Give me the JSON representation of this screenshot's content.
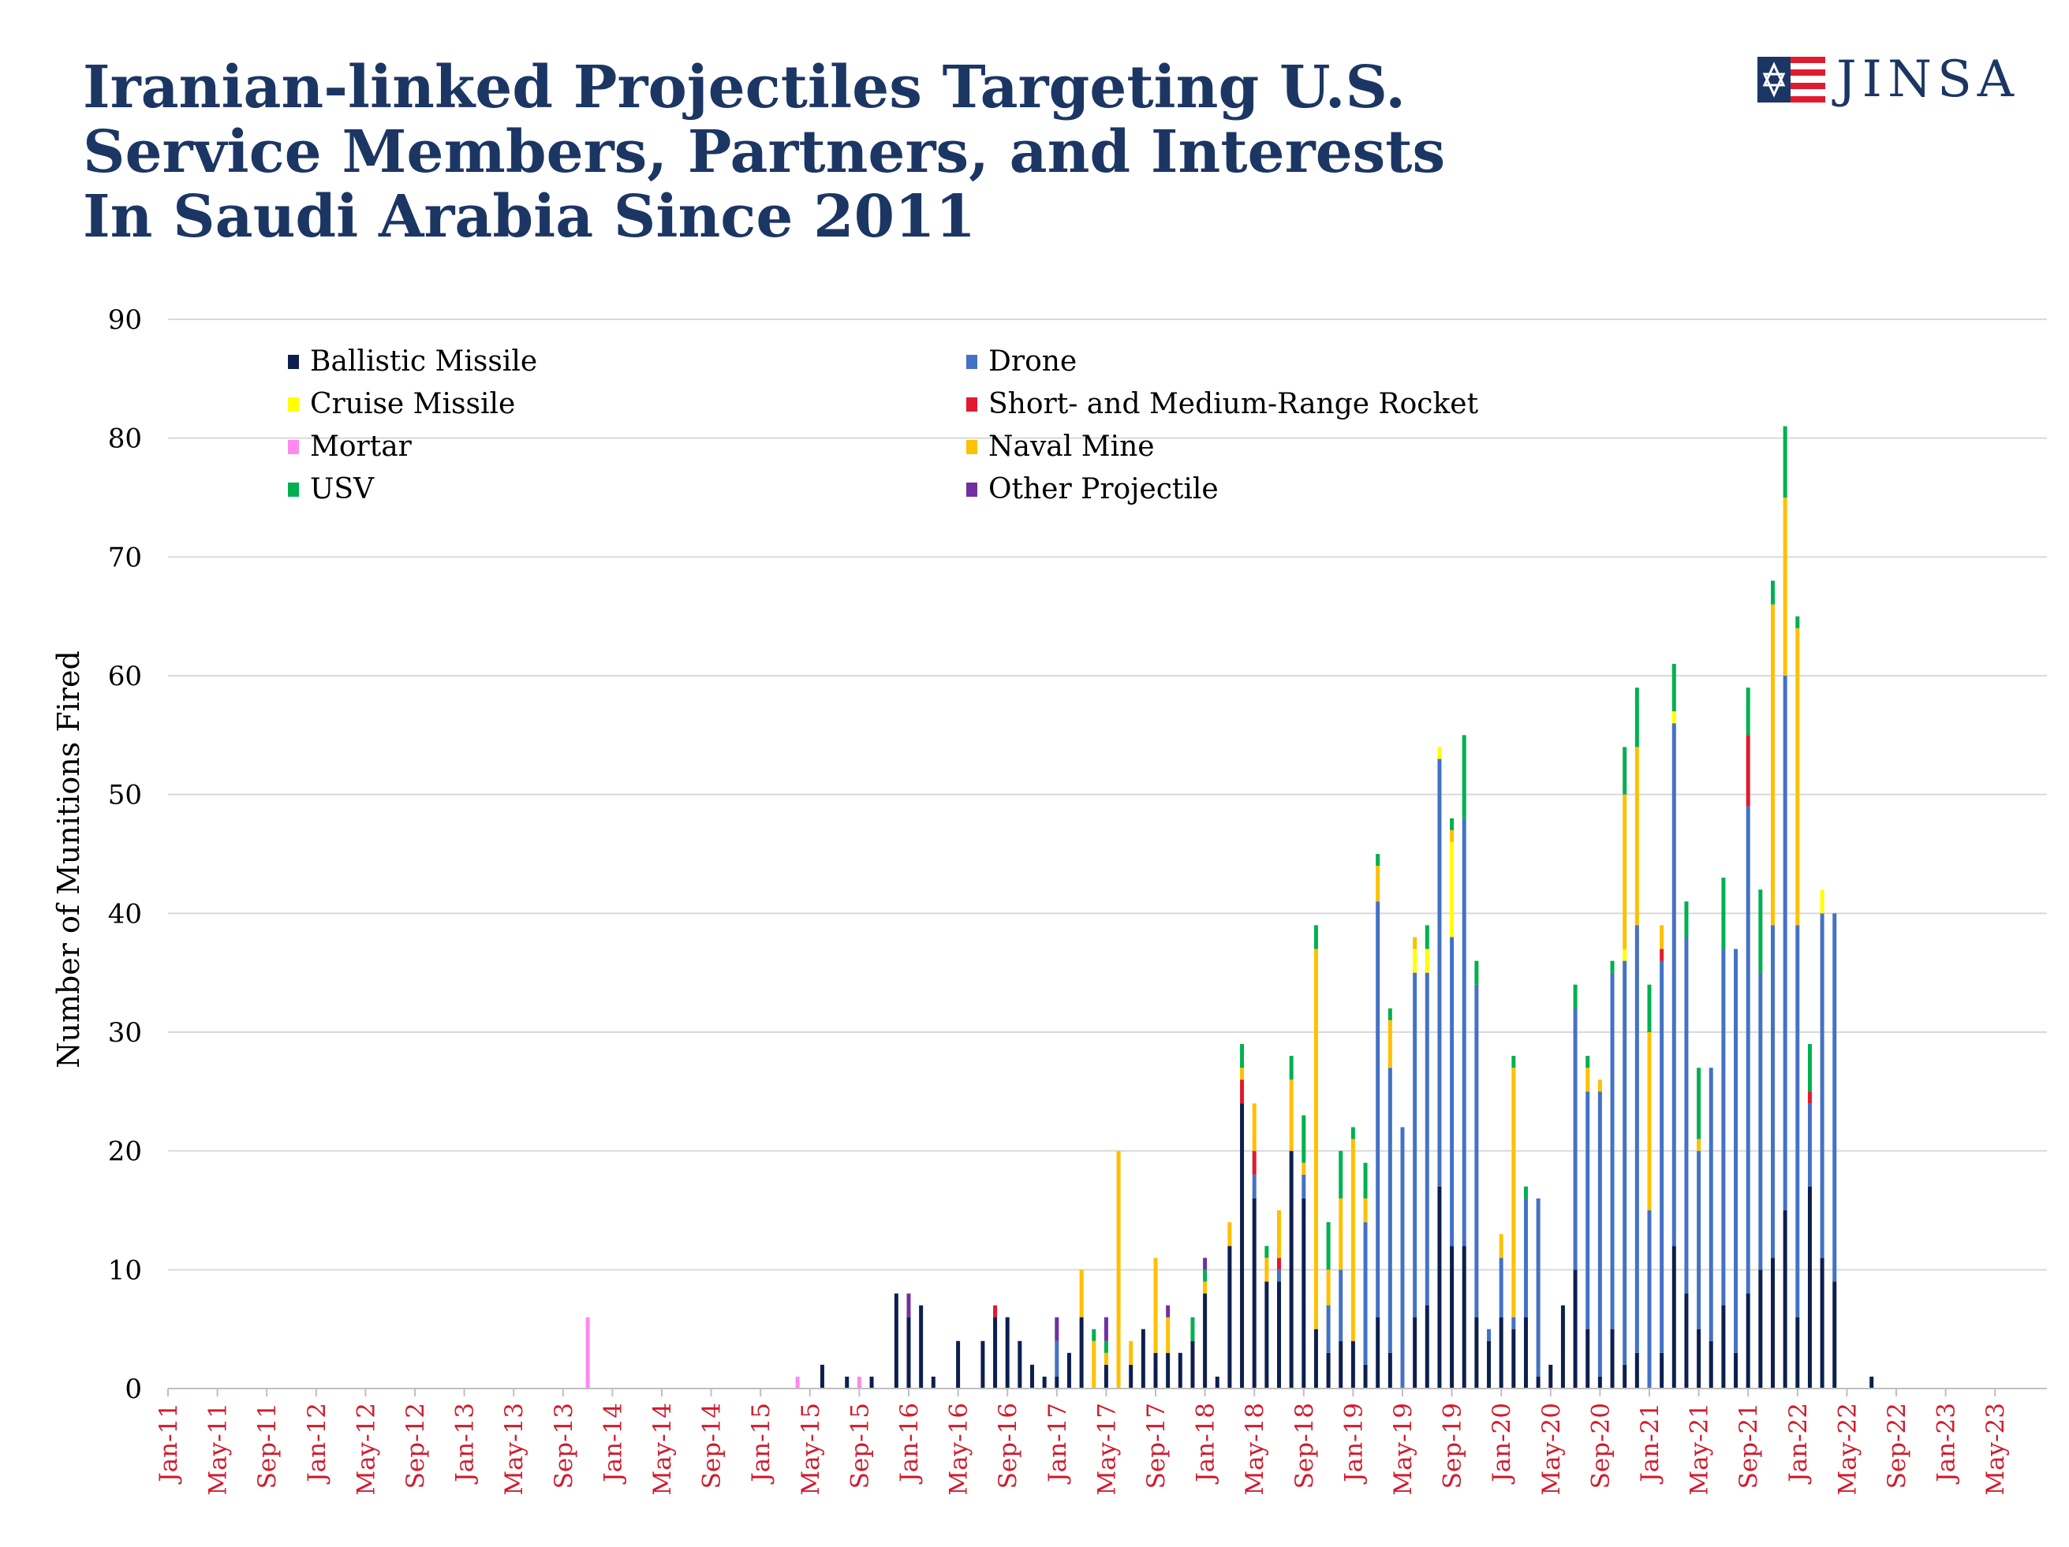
{
  "title_lines": [
    "Iranian-linked Projectiles Targeting U.S.",
    "Service Members, Partners, and Interests",
    "In Saudi Arabia Since 2011"
  ],
  "logo": {
    "text": "JINSA",
    "icon": "jinsa-flag-star-logo-icon"
  },
  "colors": {
    "title": "#1c3664",
    "Ballistic Missile": "#0d1f4f",
    "Drone": "#4472c4",
    "Cruise Missile": "#ffff00",
    "Short- and Medium-Range Rocket": "#e01b2f",
    "Mortar": "#ff88ee",
    "Naval Mine": "#ffc000",
    "USV": "#00b050",
    "Other Projectile": "#7030a0",
    "x_tick_label": "#d01c2e",
    "grid": "#d9d9d9"
  },
  "chart_data": {
    "type": "bar",
    "stacked": true,
    "ylabel": "Number of Munitions Fired",
    "xlabel": "",
    "ylim": [
      0,
      90
    ],
    "y_ticks": [
      0,
      10,
      20,
      30,
      40,
      50,
      60,
      70,
      80,
      90
    ],
    "grid": "horizontal",
    "legend_position": "top-left, two columns",
    "x_tick_labels": [
      "Jan-11",
      "May-11",
      "Sep-11",
      "Jan-12",
      "May-12",
      "Sep-12",
      "Jan-13",
      "May-13",
      "Sep-13",
      "Jan-14",
      "May-14",
      "Sep-14",
      "Jan-15",
      "May-15",
      "Sep-15",
      "Jan-16",
      "May-16",
      "Sep-16",
      "Jan-17",
      "May-17",
      "Sep-17",
      "Jan-18",
      "May-18",
      "Sep-18",
      "Jan-19",
      "May-19",
      "Sep-19",
      "Jan-20",
      "May-20",
      "Sep-20",
      "Jan-21",
      "May-21",
      "Sep-21",
      "Jan-22",
      "May-22",
      "Sep-22",
      "Jan-23",
      "May-23"
    ],
    "series_order": [
      "Ballistic Missile",
      "Drone",
      "Cruise Missile",
      "Short- and Medium-Range Rocket",
      "Mortar",
      "Naval Mine",
      "USV",
      "Other Projectile"
    ],
    "legend": [
      "Ballistic Missile",
      "Drone",
      "Cruise Missile",
      "Short- and Medium-Range Rocket",
      "Mortar",
      "Naval Mine",
      "USV",
      "Other Projectile"
    ],
    "bars": [
      {
        "month": "Nov-13",
        "Mortar": 6
      },
      {
        "month": "Apr-15",
        "Mortar": 1
      },
      {
        "month": "Jun-15",
        "Ballistic Missile": 2
      },
      {
        "month": "Aug-15",
        "Ballistic Missile": 1
      },
      {
        "month": "Sep-15",
        "Mortar": 1
      },
      {
        "month": "Oct-15",
        "Ballistic Missile": 1
      },
      {
        "month": "Dec-15",
        "Ballistic Missile": 8
      },
      {
        "month": "Jan-16",
        "Ballistic Missile": 6,
        "Other Projectile": 2
      },
      {
        "month": "Feb-16",
        "Ballistic Missile": 7
      },
      {
        "month": "Mar-16",
        "Ballistic Missile": 1
      },
      {
        "month": "May-16",
        "Ballistic Missile": 4
      },
      {
        "month": "Jul-16",
        "Ballistic Missile": 4
      },
      {
        "month": "Aug-16",
        "Ballistic Missile": 6,
        "Short- and Medium-Range Rocket": 1
      },
      {
        "month": "Sep-16",
        "Ballistic Missile": 6
      },
      {
        "month": "Oct-16",
        "Ballistic Missile": 4
      },
      {
        "month": "Nov-16",
        "Ballistic Missile": 2
      },
      {
        "month": "Dec-16",
        "Ballistic Missile": 1
      },
      {
        "month": "Jan-17",
        "Ballistic Missile": 1,
        "Drone": 3,
        "Other Projectile": 2
      },
      {
        "month": "Feb-17",
        "Ballistic Missile": 3
      },
      {
        "month": "Mar-17",
        "Ballistic Missile": 6,
        "Naval Mine": 4
      },
      {
        "month": "Apr-17",
        "Naval Mine": 4,
        "USV": 1
      },
      {
        "month": "May-17",
        "Ballistic Missile": 2,
        "Naval Mine": 1,
        "USV": 1,
        "Other Projectile": 2
      },
      {
        "month": "Jun-17",
        "Naval Mine": 20
      },
      {
        "month": "Jul-17",
        "Ballistic Missile": 2,
        "Naval Mine": 2
      },
      {
        "month": "Aug-17",
        "Ballistic Missile": 5
      },
      {
        "month": "Sep-17",
        "Ballistic Missile": 3,
        "Naval Mine": 8
      },
      {
        "month": "Oct-17",
        "Ballistic Missile": 3,
        "Naval Mine": 3,
        "Other Projectile": 1
      },
      {
        "month": "Nov-17",
        "Ballistic Missile": 3
      },
      {
        "month": "Dec-17",
        "Ballistic Missile": 4,
        "USV": 2
      },
      {
        "month": "Jan-18",
        "Ballistic Missile": 8,
        "Naval Mine": 1,
        "USV": 1,
        "Other Projectile": 1
      },
      {
        "month": "Feb-18",
        "Ballistic Missile": 1
      },
      {
        "month": "Mar-18",
        "Ballistic Missile": 12,
        "Naval Mine": 2
      },
      {
        "month": "Apr-18",
        "Ballistic Missile": 24,
        "Short- and Medium-Range Rocket": 2,
        "Naval Mine": 1,
        "USV": 2
      },
      {
        "month": "May-18",
        "Ballistic Missile": 16,
        "Drone": 2,
        "Short- and Medium-Range Rocket": 2,
        "Naval Mine": 4
      },
      {
        "month": "Jun-18",
        "Ballistic Missile": 9,
        "Naval Mine": 2,
        "USV": 1
      },
      {
        "month": "Jul-18",
        "Ballistic Missile": 9,
        "Drone": 1,
        "Short- and Medium-Range Rocket": 1,
        "Naval Mine": 4
      },
      {
        "month": "Aug-18",
        "Ballistic Missile": 20,
        "Naval Mine": 6,
        "USV": 2
      },
      {
        "month": "Sep-18",
        "Ballistic Missile": 16,
        "Drone": 2,
        "Naval Mine": 1,
        "USV": 4
      },
      {
        "month": "Oct-18",
        "Ballistic Missile": 5,
        "Naval Mine": 32,
        "USV": 2
      },
      {
        "month": "Nov-18",
        "Ballistic Missile": 3,
        "Drone": 4,
        "Naval Mine": 3,
        "USV": 4
      },
      {
        "month": "Dec-18",
        "Ballistic Missile": 4,
        "Drone": 6,
        "Naval Mine": 6,
        "USV": 4
      },
      {
        "month": "Jan-19",
        "Ballistic Missile": 4,
        "Naval Mine": 17,
        "USV": 1
      },
      {
        "month": "Feb-19",
        "Ballistic Missile": 2,
        "Drone": 12,
        "Naval Mine": 2,
        "USV": 3
      },
      {
        "month": "Mar-19",
        "Ballistic Missile": 6,
        "Drone": 35,
        "Naval Mine": 3,
        "USV": 1
      },
      {
        "month": "Apr-19",
        "Ballistic Missile": 3,
        "Drone": 24,
        "Naval Mine": 4,
        "USV": 1
      },
      {
        "month": "May-19",
        "Drone": 22
      },
      {
        "month": "Jun-19",
        "Ballistic Missile": 6,
        "Drone": 29,
        "Cruise Missile": 2,
        "Naval Mine": 1
      },
      {
        "month": "Jul-19",
        "Ballistic Missile": 7,
        "Drone": 28,
        "Cruise Missile": 2,
        "USV": 2
      },
      {
        "month": "Aug-19",
        "Ballistic Missile": 17,
        "Drone": 36,
        "Cruise Missile": 1
      },
      {
        "month": "Sep-19",
        "Ballistic Missile": 12,
        "Drone": 26,
        "Cruise Missile": 8,
        "Naval Mine": 1,
        "USV": 1
      },
      {
        "month": "Oct-19",
        "Ballistic Missile": 12,
        "Drone": 36,
        "USV": 7
      },
      {
        "month": "Nov-19",
        "Ballistic Missile": 6,
        "Drone": 28,
        "USV": 2
      },
      {
        "month": "Dec-19",
        "Ballistic Missile": 4,
        "Drone": 1
      },
      {
        "month": "Jan-20",
        "Ballistic Missile": 6,
        "Drone": 5,
        "Naval Mine": 2
      },
      {
        "month": "Feb-20",
        "Ballistic Missile": 5,
        "Drone": 1,
        "Naval Mine": 21,
        "USV": 1
      },
      {
        "month": "Mar-20",
        "Ballistic Missile": 6,
        "Drone": 10,
        "USV": 1
      },
      {
        "month": "Apr-20",
        "Ballistic Missile": 1,
        "Drone": 15
      },
      {
        "month": "May-20",
        "Ballistic Missile": 2
      },
      {
        "month": "Jun-20",
        "Ballistic Missile": 7
      },
      {
        "month": "Jul-20",
        "Ballistic Missile": 10,
        "Drone": 22,
        "USV": 2
      },
      {
        "month": "Aug-20",
        "Ballistic Missile": 5,
        "Drone": 20,
        "Naval Mine": 2,
        "USV": 1
      },
      {
        "month": "Sep-20",
        "Ballistic Missile": 1,
        "Drone": 24,
        "Naval Mine": 1
      },
      {
        "month": "Oct-20",
        "Ballistic Missile": 5,
        "Drone": 30,
        "USV": 1
      },
      {
        "month": "Nov-20",
        "Ballistic Missile": 2,
        "Drone": 34,
        "Cruise Missile": 1,
        "Naval Mine": 13,
        "USV": 4
      },
      {
        "month": "Dec-20",
        "Ballistic Missile": 3,
        "Drone": 36,
        "Naval Mine": 15,
        "USV": 5
      },
      {
        "month": "Jan-21",
        "Drone": 15,
        "Naval Mine": 15,
        "USV": 4
      },
      {
        "month": "Feb-21",
        "Ballistic Missile": 3,
        "Drone": 33,
        "Short- and Medium-Range Rocket": 1,
        "Naval Mine": 2
      },
      {
        "month": "Mar-21",
        "Ballistic Missile": 12,
        "Drone": 44,
        "Cruise Missile": 1,
        "USV": 4
      },
      {
        "month": "Apr-21",
        "Ballistic Missile": 8,
        "Drone": 30,
        "USV": 3
      },
      {
        "month": "May-21",
        "Ballistic Missile": 5,
        "Drone": 15,
        "Naval Mine": 1,
        "USV": 6
      },
      {
        "month": "Jun-21",
        "Ballistic Missile": 4,
        "Drone": 23
      },
      {
        "month": "Jul-21",
        "Ballistic Missile": 7,
        "Drone": 30,
        "USV": 6
      },
      {
        "month": "Aug-21",
        "Ballistic Missile": 3,
        "Drone": 34
      },
      {
        "month": "Sep-21",
        "Ballistic Missile": 8,
        "Drone": 41,
        "Short- and Medium-Range Rocket": 6,
        "USV": 4
      },
      {
        "month": "Oct-21",
        "Ballistic Missile": 10,
        "Drone": 25,
        "USV": 7
      },
      {
        "month": "Nov-21",
        "Ballistic Missile": 11,
        "Drone": 28,
        "Naval Mine": 27,
        "USV": 2
      },
      {
        "month": "Dec-21",
        "Ballistic Missile": 15,
        "Drone": 45,
        "Naval Mine": 15,
        "USV": 6
      },
      {
        "month": "Jan-22",
        "Ballistic Missile": 6,
        "Drone": 33,
        "Naval Mine": 25,
        "USV": 1
      },
      {
        "month": "Feb-22",
        "Ballistic Missile": 17,
        "Drone": 7,
        "Short- and Medium-Range Rocket": 1,
        "USV": 4
      },
      {
        "month": "Mar-22",
        "Ballistic Missile": 11,
        "Drone": 29,
        "Cruise Missile": 2
      },
      {
        "month": "Apr-22",
        "Ballistic Missile": 9,
        "Drone": 31
      },
      {
        "month": "Jul-22",
        "Ballistic Missile": 1
      }
    ]
  }
}
